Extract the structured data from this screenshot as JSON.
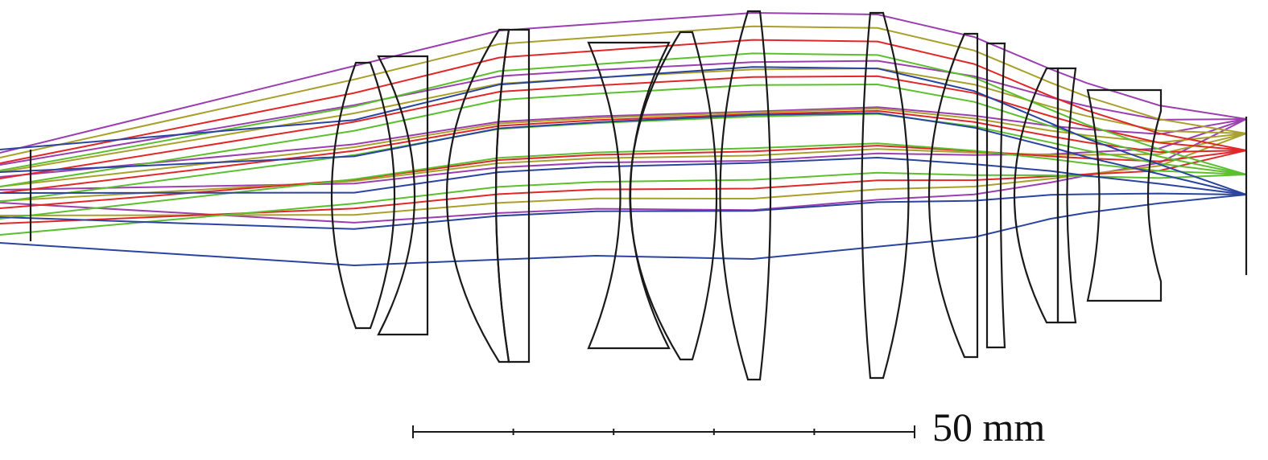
{
  "diagram": {
    "scale_bar": {
      "label": "50 mm",
      "divisions": 5
    },
    "colors": {
      "lens_outline": "#1a1a1a",
      "rays": [
        "#9b3fb0",
        "#a8a02a",
        "#e02828",
        "#5cbf2e",
        "#2a44a0"
      ]
    }
  }
}
